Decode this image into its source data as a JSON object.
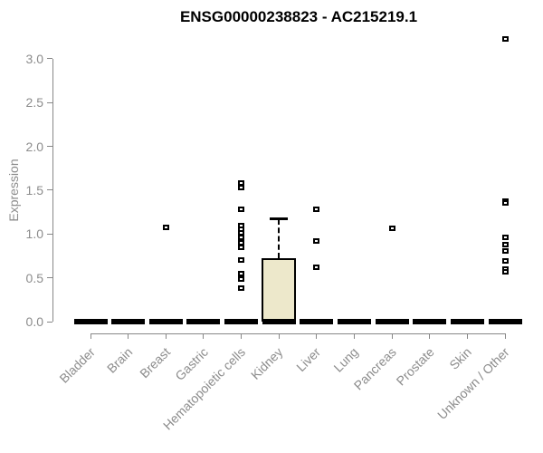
{
  "title": "ENSG00000238823 - AC215219.1",
  "chart_data": {
    "type": "box",
    "title": "ENSG00000238823 - AC215219.1",
    "xlabel": "",
    "ylabel": "Expression",
    "ylim": [
      0.0,
      3.0
    ],
    "yticks": [
      0.0,
      0.5,
      1.0,
      1.5,
      2.0,
      2.5,
      3.0
    ],
    "grid": false,
    "legend": "none",
    "categories": [
      "Bladder",
      "Brain",
      "Breast",
      "Gastric",
      "Hematopoietic cells",
      "Kidney",
      "Liver",
      "Lung",
      "Pancreas",
      "Prostate",
      "Skin",
      "Unknown / Other"
    ],
    "boxes": [
      {
        "category": "Bladder",
        "median": 0,
        "q1": 0,
        "q3": 0,
        "whisker_low": 0,
        "whisker_high": 0,
        "outliers": []
      },
      {
        "category": "Brain",
        "median": 0,
        "q1": 0,
        "q3": 0,
        "whisker_low": 0,
        "whisker_high": 0,
        "outliers": []
      },
      {
        "category": "Breast",
        "median": 0,
        "q1": 0,
        "q3": 0,
        "whisker_low": 0,
        "whisker_high": 0,
        "outliers": [
          1.08
        ]
      },
      {
        "category": "Gastric",
        "median": 0,
        "q1": 0,
        "q3": 0,
        "whisker_low": 0,
        "whisker_high": 0,
        "outliers": []
      },
      {
        "category": "Hematopoietic cells",
        "median": 0,
        "q1": 0,
        "q3": 0,
        "whisker_low": 0,
        "whisker_high": 0,
        "outliers": [
          1.58,
          1.53,
          1.28,
          1.1,
          1.06,
          1.01,
          0.96,
          0.9,
          0.85,
          0.7,
          0.55,
          0.49,
          0.38
        ]
      },
      {
        "category": "Kidney",
        "median": 0,
        "q1": 0,
        "q3": 0.72,
        "whisker_low": 0,
        "whisker_high": 1.17,
        "outliers": []
      },
      {
        "category": "Liver",
        "median": 0,
        "q1": 0,
        "q3": 0,
        "whisker_low": 0,
        "whisker_high": 0,
        "outliers": [
          1.28,
          0.92,
          0.62
        ]
      },
      {
        "category": "Lung",
        "median": 0,
        "q1": 0,
        "q3": 0,
        "whisker_low": 0,
        "whisker_high": 0,
        "outliers": []
      },
      {
        "category": "Pancreas",
        "median": 0,
        "q1": 0,
        "q3": 0,
        "whisker_low": 0,
        "whisker_high": 0,
        "outliers": [
          1.07
        ]
      },
      {
        "category": "Prostate",
        "median": 0,
        "q1": 0,
        "q3": 0,
        "whisker_low": 0,
        "whisker_high": 0,
        "outliers": []
      },
      {
        "category": "Skin",
        "median": 0,
        "q1": 0,
        "q3": 0,
        "whisker_low": 0,
        "whisker_high": 0,
        "outliers": []
      },
      {
        "category": "Unknown / Other",
        "median": 0,
        "q1": 0,
        "q3": 0,
        "whisker_low": 0,
        "whisker_high": 0,
        "outliers": [
          3.23,
          1.38,
          1.35,
          0.96,
          0.88,
          0.81,
          0.69,
          0.6,
          0.57
        ]
      }
    ],
    "colors": {
      "box_fill": "#ede8cb",
      "box_border": "#000000",
      "median_bar": "#000000",
      "point": "#000000",
      "point_center": "#ffffff",
      "axis": "#878787",
      "tick_label": "#8c8c8c",
      "title": "#000000",
      "background": "#ffffff"
    }
  }
}
